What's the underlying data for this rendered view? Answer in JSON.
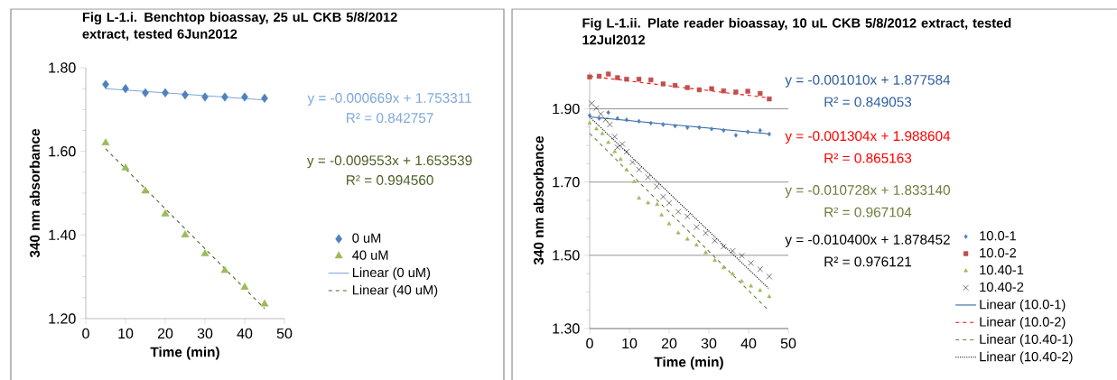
{
  "chart_data": [
    {
      "type": "scatter",
      "title": "Fig L-1.i. Benchtop bioassay,  25 uL CKB 5/8/2012 extract, tested 6Jun2012",
      "xlabel": "Time (min)",
      "ylabel": "340 nm absorbance",
      "xlim": [
        0,
        50
      ],
      "xticks": [
        0,
        10,
        20,
        30,
        40,
        50
      ],
      "ylim": [
        1.2,
        1.8
      ],
      "yticks": [
        {
          "value": 1.2,
          "label": "1.20"
        },
        {
          "value": 1.4,
          "label": "1.40"
        },
        {
          "value": 1.6,
          "label": "1.60"
        },
        {
          "value": 1.8,
          "label": "1.80"
        }
      ],
      "legend": "right",
      "x": [
        5,
        10,
        15,
        20,
        25,
        30,
        35,
        40,
        45
      ],
      "series": [
        {
          "name": "0 uM",
          "marker": "diamond",
          "color": "#4f81bd",
          "values": [
            1.76,
            1.75,
            1.74,
            1.74,
            1.735,
            1.73,
            1.73,
            1.73,
            1.727
          ]
        },
        {
          "name": "40 uM",
          "marker": "triangle",
          "color": "#9bbb59",
          "values": [
            1.62,
            1.56,
            1.505,
            1.45,
            1.4,
            1.355,
            1.315,
            1.275,
            1.235
          ]
        },
        {
          "name": "Linear (0 uM)",
          "type": "line",
          "line_style": "solid",
          "color": "#7fa7d8",
          "x": [
            5,
            45
          ],
          "values": [
            1.75,
            1.723
          ]
        },
        {
          "name": "Linear (40 uM)",
          "type": "line",
          "line_style": "dashed",
          "color": "#4f6228",
          "x": [
            5,
            45
          ],
          "values": [
            1.606,
            1.224
          ]
        }
      ],
      "annotations": [
        "y = -0.000669x + 1.753311",
        "R² = 0.842757",
        "y = -0.009553x + 1.653539",
        "R² = 0.994560"
      ]
    },
    {
      "type": "scatter",
      "title": "Fig L-1.ii. Plate reader bioassay,  10 uL CKB 5/8/2012 extract, tested 12Jul2012",
      "xlabel": "Time (min)",
      "ylabel": "340 nm absorbance",
      "xlim": [
        0,
        50
      ],
      "xticks": [
        0,
        10,
        20,
        30,
        40,
        50
      ],
      "ylim": [
        1.3,
        2.0
      ],
      "yticks": [
        {
          "value": 1.3,
          "label": "1.30"
        },
        {
          "value": 1.5,
          "label": "1.50"
        },
        {
          "value": 1.7,
          "label": "1.70"
        },
        {
          "value": 1.9,
          "label": "1.90"
        }
      ],
      "grid": "y",
      "legend": "right",
      "series": [
        {
          "name": "10.0-1",
          "marker": "diamond",
          "color": "#4f81bd",
          "x": [
            0,
            2.4,
            4.7,
            7.0,
            9.3,
            12.4,
            15.4,
            18.5,
            21.5,
            24.6,
            27.6,
            30.7,
            33.7,
            36.8,
            39.8,
            42.9,
            45.2
          ],
          "values": [
            1.882,
            1.874,
            1.89,
            1.874,
            1.87,
            1.866,
            1.861,
            1.857,
            1.853,
            1.849,
            1.849,
            1.845,
            1.841,
            1.828,
            1.837,
            1.841,
            1.831
          ]
        },
        {
          "name": "10.0-2",
          "marker": "square",
          "color": "#c0504d",
          "x": [
            0,
            2.4,
            4.7,
            7.0,
            9.3,
            12.4,
            15.4,
            18.5,
            21.5,
            24.6,
            27.6,
            30.7,
            33.7,
            36.8,
            39.8,
            42.9,
            45.2
          ],
          "values": [
            1.987,
            1.989,
            1.995,
            1.985,
            1.981,
            1.981,
            1.979,
            1.968,
            1.964,
            1.958,
            1.952,
            1.955,
            1.949,
            1.946,
            1.948,
            1.942,
            1.927
          ]
        },
        {
          "name": "10.40-1",
          "marker": "triangle",
          "color": "#9bbb59",
          "x": [
            0,
            1.7,
            3.2,
            4.7,
            6.3,
            7.8,
            9.3,
            11.2,
            12.4,
            14.7,
            17.0,
            18.1,
            20.0,
            22.3,
            24.6,
            26.9,
            29.2,
            31.5,
            33.7,
            36.0,
            38.3,
            40.6,
            42.9,
            45.2
          ],
          "values": [
            1.861,
            1.845,
            1.832,
            1.808,
            1.783,
            1.762,
            1.733,
            1.701,
            1.656,
            1.643,
            1.639,
            1.61,
            1.586,
            1.561,
            1.544,
            1.528,
            1.507,
            1.486,
            1.466,
            1.449,
            1.429,
            1.416,
            1.404,
            1.387
          ]
        },
        {
          "name": "10.40-2",
          "marker": "cross",
          "color": "#000000",
          "x": [
            0.5,
            1.7,
            2.8,
            4.0,
            5.1,
            6.3,
            7.0,
            8.2,
            9.3,
            10.8,
            12.4,
            14.7,
            16.9,
            18.5,
            20.0,
            22.3,
            24.6,
            26.9,
            29.2,
            31.5,
            33.7,
            36.0,
            38.3,
            40.6,
            42.9,
            45.2
          ],
          "values": [
            1.915,
            1.902,
            1.886,
            1.87,
            1.857,
            1.824,
            1.795,
            1.804,
            1.783,
            1.754,
            1.734,
            1.713,
            1.688,
            1.66,
            1.643,
            1.619,
            1.606,
            1.577,
            1.561,
            1.54,
            1.524,
            1.512,
            1.499,
            1.479,
            1.462,
            1.442
          ]
        },
        {
          "name": "Linear (10.0-1)",
          "type": "line",
          "line_style": "solid",
          "color": "#2f5f9e",
          "x": [
            0,
            45
          ],
          "values": [
            1.878,
            1.832
          ]
        },
        {
          "name": "Linear (10.0-2)",
          "type": "line",
          "line_style": "dashed",
          "color": "#ff0000",
          "x": [
            0,
            45
          ],
          "values": [
            1.989,
            1.93
          ]
        },
        {
          "name": "Linear (10.40-1)",
          "type": "line",
          "line_style": "dashed",
          "color": "#6b7f3a",
          "x": [
            0,
            45
          ],
          "values": [
            1.833,
            1.35
          ]
        },
        {
          "name": "Linear (10.40-2)",
          "type": "line",
          "line_style": "dotted",
          "color": "#000000",
          "x": [
            0,
            45
          ],
          "values": [
            1.878,
            1.41
          ]
        }
      ],
      "annotations": [
        "y = -0.001010x + 1.877584",
        "R² = 0.849053",
        "y = -0.001304x + 1.988604",
        "R² = 0.865163",
        "y = -0.010728x + 1.833140",
        "R² = 0.967104",
        "y = -0.010400x + 1.878452",
        "R² = 0.976121"
      ]
    }
  ]
}
